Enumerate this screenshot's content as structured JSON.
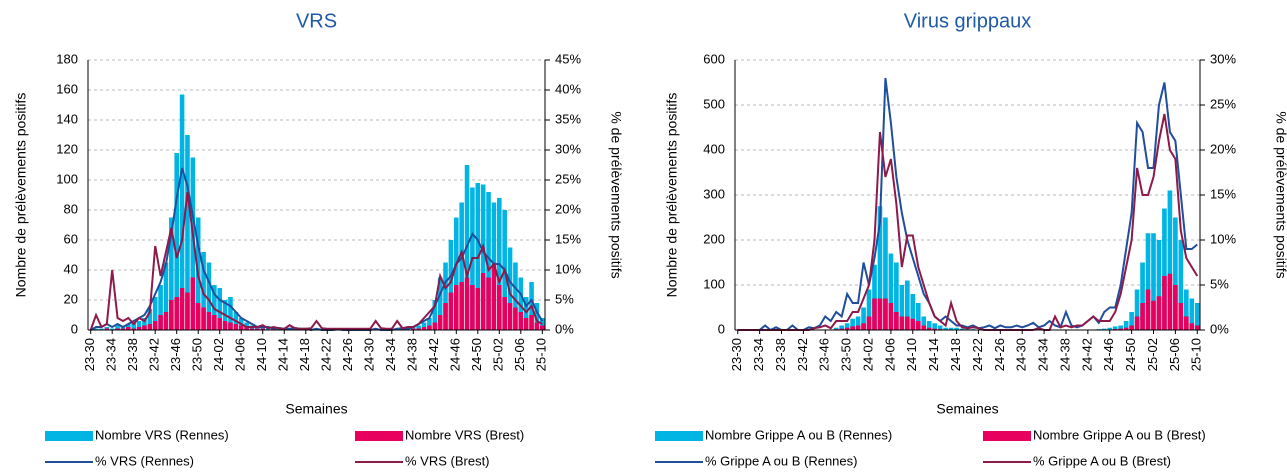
{
  "chart_data": [
    {
      "type": "combo",
      "title": "VRS",
      "x_label": "Semaines",
      "y_label": "Nombre de prélèvements positifs",
      "y2_label": "% de prélèvements positifs",
      "grid": true,
      "categories": [
        "23-30",
        null,
        null,
        null,
        "23-34",
        null,
        null,
        null,
        "23-38",
        null,
        null,
        null,
        "23-42",
        null,
        null,
        null,
        "23-46",
        null,
        null,
        null,
        "23-50",
        null,
        null,
        null,
        "24-02",
        null,
        null,
        null,
        "24-06",
        null,
        null,
        null,
        "24-10",
        null,
        null,
        null,
        "24-14",
        null,
        null,
        null,
        "24-18",
        null,
        null,
        null,
        "24-22",
        null,
        null,
        null,
        "24-26",
        null,
        null,
        null,
        "24-30",
        null,
        null,
        null,
        "24-34",
        null,
        null,
        null,
        "24-38",
        null,
        null,
        null,
        "24-42",
        null,
        null,
        null,
        "24-46",
        null,
        null,
        null,
        "24-50",
        null,
        null,
        null,
        "25-02",
        null,
        null,
        null,
        "25-06",
        null,
        null,
        null,
        "25-10"
      ],
      "ylim": [
        0,
        180
      ],
      "yticks": [
        0,
        20,
        40,
        60,
        80,
        100,
        120,
        140,
        160,
        180
      ],
      "y2lim": [
        0,
        45
      ],
      "y2ticks": [
        {
          "value": 0,
          "label": "0%"
        },
        {
          "value": 5,
          "label": "5%"
        },
        {
          "value": 10,
          "label": "10%"
        },
        {
          "value": 15,
          "label": "15%"
        },
        {
          "value": 20,
          "label": "20%"
        },
        {
          "value": 25,
          "label": "25%"
        },
        {
          "value": 30,
          "label": "30%"
        },
        {
          "value": 35,
          "label": "35%"
        },
        {
          "value": 40,
          "label": "40%"
        },
        {
          "value": 45,
          "label": "45%"
        }
      ],
      "series": [
        {
          "name": "Nombre VRS (Rennes)",
          "type": "bar",
          "color": "#00b4e4",
          "values": [
            0,
            1,
            1,
            2,
            1,
            3,
            2,
            4,
            5,
            6,
            8,
            14,
            22,
            30,
            45,
            75,
            118,
            157,
            130,
            115,
            75,
            52,
            45,
            30,
            28,
            20,
            22,
            12,
            8,
            5,
            3,
            2,
            3,
            2,
            1,
            2,
            1,
            1,
            2,
            1,
            1,
            0,
            1,
            0,
            0,
            0,
            1,
            0,
            0,
            0,
            0,
            0,
            0,
            1,
            0,
            0,
            0,
            1,
            1,
            1,
            2,
            3,
            5,
            8,
            20,
            35,
            45,
            60,
            75,
            85,
            110,
            95,
            98,
            97,
            92,
            85,
            88,
            80,
            55,
            45,
            35,
            22,
            32,
            18,
            8
          ]
        },
        {
          "name": "Nombre VRS (Brest)",
          "type": "bar",
          "color": "#e8005e",
          "values": [
            0,
            0,
            0,
            1,
            0,
            1,
            1,
            2,
            1,
            2,
            3,
            4,
            6,
            10,
            12,
            20,
            22,
            28,
            25,
            35,
            18,
            15,
            12,
            10,
            8,
            6,
            5,
            4,
            3,
            2,
            1,
            1,
            1,
            0,
            1,
            0,
            0,
            1,
            0,
            0,
            0,
            0,
            1,
            0,
            0,
            0,
            0,
            0,
            0,
            0,
            0,
            0,
            0,
            0,
            0,
            0,
            0,
            0,
            1,
            0,
            1,
            1,
            2,
            3,
            5,
            10,
            18,
            25,
            30,
            32,
            35,
            30,
            28,
            38,
            35,
            44,
            30,
            22,
            18,
            15,
            12,
            8,
            10,
            5,
            3
          ]
        },
        {
          "name": "% VRS (Rennes)",
          "type": "line",
          "axis": "y2",
          "color": "#1f4e9c",
          "values": [
            0,
            0.5,
            0.5,
            1,
            0.5,
            1,
            0.5,
            1,
            1.5,
            2,
            2.5,
            4,
            6,
            8,
            11,
            16,
            22,
            27,
            24,
            19,
            14,
            10,
            8,
            6,
            5,
            4.5,
            4,
            3,
            2,
            1.5,
            1,
            0.5,
            0.5,
            0.5,
            0.3,
            0.3,
            0.2,
            0.2,
            0.3,
            0.2,
            0.2,
            0,
            0.2,
            0,
            0,
            0,
            0.1,
            0,
            0,
            0,
            0,
            0,
            0,
            0.2,
            0,
            0,
            0,
            0.2,
            0.3,
            0.2,
            0.5,
            1,
            1.5,
            2,
            4,
            6,
            8,
            9,
            11,
            12,
            14,
            16,
            15,
            13,
            12,
            11,
            11,
            10,
            8,
            7,
            6,
            4,
            5,
            3,
            1.5
          ]
        },
        {
          "name": "% VRS (Brest)",
          "type": "line",
          "axis": "y2",
          "color": "#8c1a4b",
          "values": [
            0,
            2.5,
            0.5,
            1,
            10,
            2,
            1.5,
            2,
            1,
            2,
            1.5,
            3,
            14,
            9,
            13,
            17,
            12,
            15,
            23,
            16,
            9,
            6,
            5,
            3.5,
            3,
            2.5,
            2,
            1.5,
            1,
            0.5,
            0.5,
            0.5,
            0.8,
            0.3,
            0.5,
            0.3,
            0.2,
            0.8,
            0.3,
            0.2,
            0.2,
            0.3,
            1.5,
            0.3,
            0.2,
            0.2,
            0.2,
            0.2,
            0.2,
            0.2,
            0.2,
            0.2,
            0.2,
            1.5,
            0.3,
            0.2,
            0.2,
            1.5,
            0.3,
            0.5,
            0.5,
            1,
            2,
            3,
            4,
            9,
            7,
            8,
            11,
            13,
            9,
            12,
            12,
            14,
            10,
            11,
            8,
            10,
            6,
            5,
            4,
            3,
            4,
            1.5,
            1
          ]
        }
      ]
    },
    {
      "type": "combo",
      "title": "Virus grippaux",
      "x_label": "Semaines",
      "y_label": "Nombre de prélèvements positifs",
      "y2_label": "% de prélèvements positifs",
      "grid": true,
      "categories": [
        "23-30",
        null,
        null,
        null,
        "23-34",
        null,
        null,
        null,
        "23-38",
        null,
        null,
        null,
        "23-42",
        null,
        null,
        null,
        "23-46",
        null,
        null,
        null,
        "23-50",
        null,
        null,
        null,
        "24-02",
        null,
        null,
        null,
        "24-06",
        null,
        null,
        null,
        "24-10",
        null,
        null,
        null,
        "24-14",
        null,
        null,
        null,
        "24-18",
        null,
        null,
        null,
        "24-22",
        null,
        null,
        null,
        "24-26",
        null,
        null,
        null,
        "24-30",
        null,
        null,
        null,
        "24-34",
        null,
        null,
        null,
        "24-38",
        null,
        null,
        null,
        "24-42",
        null,
        null,
        null,
        "24-46",
        null,
        null,
        null,
        "24-50",
        null,
        null,
        null,
        "25-02",
        null,
        null,
        null,
        "25-06",
        null,
        null,
        null,
        "25-10"
      ],
      "ylim": [
        0,
        600
      ],
      "yticks": [
        0,
        100,
        200,
        300,
        400,
        500,
        600
      ],
      "y2lim": [
        0,
        30
      ],
      "y2ticks": [
        {
          "value": 0,
          "label": "0%"
        },
        {
          "value": 5,
          "label": "5%"
        },
        {
          "value": 10,
          "label": "10%"
        },
        {
          "value": 15,
          "label": "15%"
        },
        {
          "value": 20,
          "label": "20%"
        },
        {
          "value": 25,
          "label": "25%"
        },
        {
          "value": 30,
          "label": "30%"
        }
      ],
      "series": [
        {
          "name": "Nombre Grippe A ou B (Rennes)",
          "type": "bar",
          "color": "#00b4e4",
          "values": [
            0,
            0,
            0,
            0,
            0,
            0,
            0,
            0,
            0,
            0,
            0,
            0,
            0,
            0,
            0,
            0,
            0,
            0,
            5,
            10,
            15,
            25,
            30,
            50,
            90,
            145,
            275,
            250,
            170,
            150,
            100,
            110,
            80,
            60,
            30,
            20,
            15,
            10,
            5,
            5,
            5,
            3,
            2,
            2,
            1,
            1,
            1,
            1,
            0,
            0,
            0,
            0,
            0,
            0,
            0,
            0,
            0,
            0,
            0,
            0,
            0,
            0,
            0,
            0,
            0,
            1,
            2,
            3,
            5,
            8,
            10,
            20,
            40,
            90,
            150,
            215,
            215,
            200,
            270,
            310,
            250,
            200,
            90,
            70,
            60
          ]
        },
        {
          "name": "Nombre Grippe A ou B (Brest)",
          "type": "bar",
          "color": "#e8005e",
          "values": [
            0,
            0,
            0,
            0,
            0,
            0,
            0,
            0,
            0,
            0,
            0,
            0,
            0,
            0,
            0,
            0,
            0,
            0,
            2,
            3,
            5,
            8,
            10,
            15,
            30,
            70,
            70,
            70,
            60,
            40,
            30,
            30,
            25,
            20,
            10,
            5,
            3,
            2,
            1,
            1,
            1,
            0,
            0,
            0,
            0,
            0,
            0,
            0,
            0,
            0,
            0,
            0,
            0,
            0,
            0,
            0,
            0,
            0,
            0,
            0,
            0,
            0,
            0,
            0,
            0,
            0,
            0,
            0,
            1,
            2,
            3,
            5,
            10,
            30,
            60,
            90,
            65,
            75,
            120,
            125,
            100,
            60,
            30,
            15,
            10
          ]
        },
        {
          "name": "% Grippe A ou B (Rennes)",
          "type": "line",
          "axis": "y2",
          "color": "#1f4e9c",
          "values": [
            0,
            0,
            0,
            0,
            0,
            0.5,
            0,
            0.3,
            0,
            0,
            0.5,
            0,
            0,
            0.3,
            0.2,
            0.5,
            1.5,
            1,
            2,
            1.5,
            4,
            3,
            3,
            7.5,
            5,
            8,
            12,
            28,
            23,
            17,
            13,
            10,
            8,
            6,
            4,
            3,
            1.5,
            1,
            1.5,
            1,
            0.5,
            0.5,
            0.3,
            0.5,
            0.2,
            0.3,
            0.5,
            0.2,
            0.5,
            0.3,
            0.3,
            0.5,
            0.3,
            0.5,
            0.8,
            0.3,
            0.5,
            1,
            0.5,
            0.3,
            2,
            0.5,
            0.3,
            0.5,
            1,
            1.5,
            0.8,
            2,
            2.5,
            2.5,
            5,
            9,
            13,
            23,
            22,
            18,
            18,
            25,
            27.5,
            22,
            21,
            15,
            9,
            9,
            9.5
          ]
        },
        {
          "name": "% Grippe A ou B (Brest)",
          "type": "line",
          "axis": "y2",
          "color": "#8c1a4b",
          "values": [
            0,
            0,
            0,
            0,
            0,
            0,
            0,
            0,
            0,
            0,
            0,
            0,
            0,
            0,
            0.2,
            0.3,
            0.5,
            0.2,
            1,
            1,
            1,
            2,
            2,
            3.5,
            5,
            10,
            22,
            17,
            19,
            14,
            7,
            10.5,
            10.5,
            7,
            5,
            3,
            1.5,
            1,
            0.5,
            3,
            1,
            0.3,
            0.2,
            0.3,
            0.2,
            0,
            0,
            0,
            0,
            0,
            0,
            0,
            0,
            0,
            0,
            0.2,
            0,
            0,
            1.5,
            0.3,
            0.5,
            0.3,
            0.5,
            0.5,
            1,
            1.5,
            1,
            1,
            1,
            2,
            4,
            7,
            10,
            18,
            15,
            15,
            17,
            21,
            24,
            20,
            19,
            11,
            8,
            7,
            6
          ]
        }
      ]
    }
  ]
}
